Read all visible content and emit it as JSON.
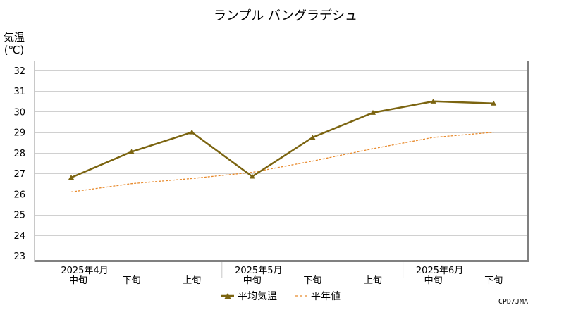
{
  "chart_data": {
    "type": "line",
    "title": "ランプル バングラデシュ",
    "ylabel_line1": "気温",
    "ylabel_line2": "(℃)",
    "source": "CPD/JMA",
    "ylim": [
      23,
      32
    ],
    "yticks": [
      23,
      24,
      25,
      26,
      27,
      28,
      29,
      30,
      31,
      32
    ],
    "grid": true,
    "legend_position": "bottom",
    "x_labels": [
      {
        "dekad": "中旬",
        "month": "2025年4月"
      },
      {
        "dekad": "下旬",
        "month": ""
      },
      {
        "dekad": "上旬",
        "month": ""
      },
      {
        "dekad": "中旬",
        "month": "2025年5月"
      },
      {
        "dekad": "下旬",
        "month": ""
      },
      {
        "dekad": "上旬",
        "month": ""
      },
      {
        "dekad": "中旬",
        "month": "2025年6月"
      },
      {
        "dekad": "下旬",
        "month": ""
      }
    ],
    "series": [
      {
        "name": "平均気温",
        "color": "#7b6410",
        "style": "solid",
        "marker": "triangle",
        "values": [
          26.8,
          28.05,
          29.0,
          26.85,
          28.75,
          29.95,
          30.5,
          30.4
        ]
      },
      {
        "name": "平年値",
        "color": "#e88a2c",
        "style": "dashed",
        "marker": "none",
        "values": [
          26.1,
          26.5,
          26.75,
          27.05,
          27.6,
          28.2,
          28.75,
          29.0
        ]
      }
    ]
  }
}
